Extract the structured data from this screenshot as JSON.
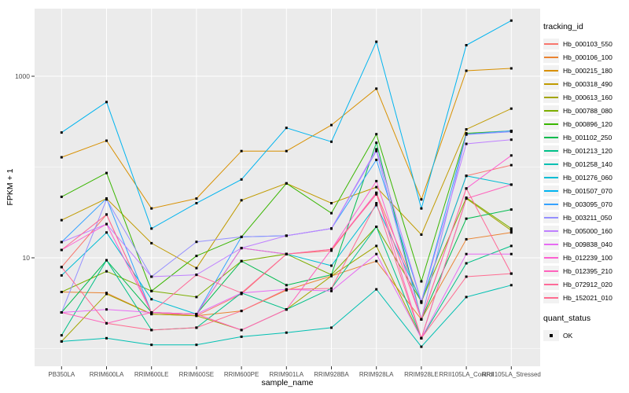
{
  "figure": {
    "panel_background": "#EBEBEB",
    "grid_color": "#FFFFFF",
    "tick_color": "#333333",
    "tick_label_color": "#4D4D4D",
    "point_color": "#000000"
  },
  "axes": {
    "x": {
      "label": "sample_name"
    },
    "y": {
      "label": "FPKM + 1",
      "tick_labels": [
        "10",
        "1000"
      ],
      "scale": "log10"
    }
  },
  "legend": {
    "tracking_title": "tracking_id",
    "quant_title": "quant_status",
    "quant_items": [
      {
        "label": "OK",
        "symbol": "black-square"
      }
    ]
  },
  "chart_data": {
    "type": "line",
    "title": "",
    "xlabel": "sample_name",
    "ylabel": "FPKM + 1",
    "x_categories": [
      "PB350LA",
      "RRIM600LA",
      "RRIM600LE",
      "RRIM600SE",
      "RRIM600PE",
      "RRIM901LA",
      "RRIM928BA",
      "RRIM928LA",
      "RRIM928LE",
      "RRII105LA_Control",
      "RRII105LA_Stressed"
    ],
    "y_scale": "log10",
    "y_breaks": [
      10,
      1000
    ],
    "y_minor_breaks": [
      1,
      100
    ],
    "ylim": [
      0.9,
      5600
    ],
    "grid": "on",
    "legend_position": "right",
    "point_marker": {
      "shape": "square",
      "color": "#000000",
      "legend_label": "OK"
    },
    "series": [
      {
        "name": "Hb_000103_550",
        "color": "#F8766D",
        "values": [
          7.9,
          30,
          2.5,
          2.3,
          4.0,
          11,
          12,
          52,
          3.2,
          80,
          105
        ]
      },
      {
        "name": "Hb_000106_100",
        "color": "#EA8331",
        "values": [
          4.2,
          4.1,
          2.4,
          2.3,
          2.6,
          4.4,
          6.3,
          9.2,
          2.1,
          16,
          19
        ]
      },
      {
        "name": "Hb_000215_180",
        "color": "#D89000",
        "values": [
          128,
          195,
          35,
          45,
          150,
          150,
          290,
          730,
          44,
          1150,
          1220
        ]
      },
      {
        "name": "Hb_000318_490",
        "color": "#C09B00",
        "values": [
          26,
          45,
          14.5,
          7.7,
          43,
          66,
          40,
          60,
          18,
          260,
          440
        ]
      },
      {
        "name": "Hb_000613_160",
        "color": "#A3A500",
        "values": [
          1.2,
          4.0,
          2.4,
          2.3,
          1.6,
          2.7,
          6.3,
          13.5,
          1.3,
          45,
          20
        ]
      },
      {
        "name": "Hb_000788_080",
        "color": "#7CAE00",
        "values": [
          4.2,
          7.1,
          4.3,
          3.7,
          9.2,
          11,
          6.5,
          22,
          3.3,
          46,
          21
        ]
      },
      {
        "name": "Hb_000896_120",
        "color": "#39B600",
        "values": [
          47,
          86,
          4.3,
          10.5,
          17,
          66,
          31,
          230,
          5.5,
          235,
          250
        ]
      },
      {
        "name": "Hb_001102_250",
        "color": "#00BB4E",
        "values": [
          2.5,
          9.4,
          2.5,
          2.4,
          9.2,
          5.0,
          6.5,
          185,
          2.1,
          27,
          34
        ]
      },
      {
        "name": "Hb_001213_120",
        "color": "#00C087",
        "values": [
          1.4,
          9.4,
          1.6,
          1.7,
          4.1,
          2.7,
          4.6,
          22,
          1.3,
          8.7,
          13.5
        ]
      },
      {
        "name": "Hb_001258_140",
        "color": "#00C0B2",
        "values": [
          1.2,
          1.3,
          1.1,
          1.1,
          1.35,
          1.5,
          1.7,
          4.5,
          1.05,
          3.7,
          5.0
        ]
      },
      {
        "name": "Hb_001276_060",
        "color": "#00BDD4",
        "values": [
          6.4,
          19,
          3.5,
          2.4,
          12.8,
          11,
          8.2,
          38,
          3.3,
          80,
          64
        ]
      },
      {
        "name": "Hb_001507_070",
        "color": "#00B4EF",
        "values": [
          240,
          520,
          21,
          40,
          73,
          270,
          190,
          2400,
          35,
          2200,
          4100
        ]
      },
      {
        "name": "Hb_003095_070",
        "color": "#35A2FF",
        "values": [
          14.9,
          45,
          2.5,
          2.4,
          17,
          17.5,
          21,
          120,
          3.3,
          230,
          250
        ]
      },
      {
        "name": "Hb_003211_050",
        "color": "#9590FF",
        "values": [
          2.5,
          44,
          6.2,
          15,
          17,
          17.5,
          21,
          150,
          2.1,
          228,
          245
        ]
      },
      {
        "name": "Hb_005000_160",
        "color": "#BF80FF",
        "values": [
          14.9,
          23.5,
          6.2,
          6.5,
          12.8,
          17.5,
          21,
          157,
          3.3,
          180,
          200
        ]
      },
      {
        "name": "Hb_009838_040",
        "color": "#E76BF3",
        "values": [
          2.5,
          2.7,
          2.5,
          2.4,
          4.1,
          4.5,
          4.3,
          11,
          1.3,
          11,
          11
        ]
      },
      {
        "name": "Hb_012239_100",
        "color": "#FD61D1",
        "values": [
          12.2,
          23.5,
          2.5,
          2.4,
          12.8,
          11,
          12.4,
          70,
          2.1,
          58,
          134
        ]
      },
      {
        "name": "Hb_012395_210",
        "color": "#FF62BC",
        "values": [
          2.5,
          1.9,
          2.5,
          2.4,
          1.6,
          2.7,
          12.4,
          52,
          1.3,
          45,
          64
        ]
      },
      {
        "name": "Hb_072912_020",
        "color": "#FF6A98",
        "values": [
          12.2,
          30,
          2.5,
          6.5,
          4.1,
          11,
          12.4,
          50,
          2.1,
          58,
          6.7
        ]
      },
      {
        "name": "Hb_152021_010",
        "color": "#FF6C91",
        "values": [
          7.9,
          1.9,
          1.6,
          1.7,
          2.6,
          4.5,
          4.6,
          40,
          1.3,
          6.2,
          6.7
        ]
      }
    ]
  }
}
